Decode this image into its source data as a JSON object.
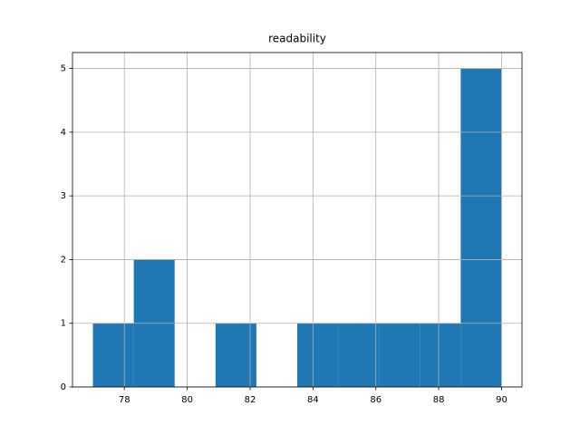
{
  "chart_data": {
    "type": "histogram",
    "title": "readability",
    "bins": [
      77,
      78.3,
      79.6,
      80.9,
      82.2,
      83.5,
      84.8,
      86.1,
      87.4,
      88.7,
      90
    ],
    "counts": [
      1,
      2,
      0,
      1,
      0,
      1,
      1,
      1,
      1,
      5
    ],
    "color": "#1f77b4",
    "xlim": [
      76.35,
      90.65
    ],
    "xticks": [
      78,
      80,
      82,
      84,
      86,
      88,
      90
    ],
    "ylim": [
      0,
      5.25
    ],
    "yticks": [
      0,
      1,
      2,
      3,
      4,
      5
    ],
    "grid": true
  }
}
